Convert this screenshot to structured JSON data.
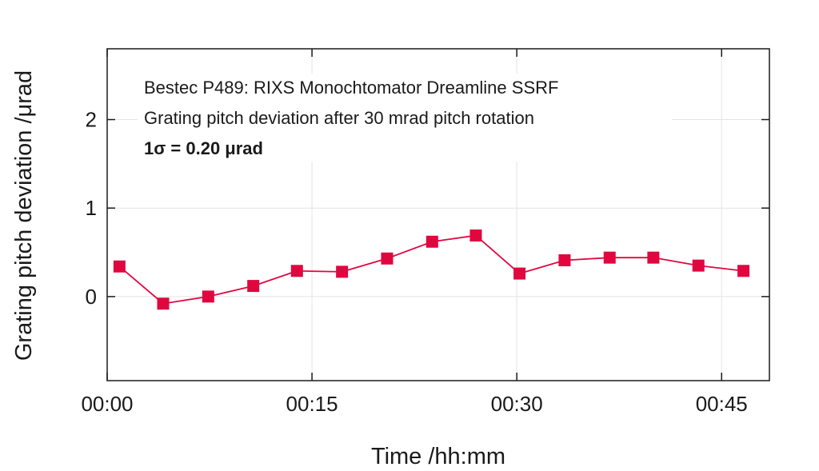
{
  "chart_data": {
    "type": "line",
    "xlabel": "Time /hh:mm",
    "ylabel": "Grating pitch deviation /μrad",
    "xlim": [
      0,
      48.5
    ],
    "ylim": [
      -0.95,
      2.8
    ],
    "x_ticks": [
      {
        "value": 0,
        "label": "00:00"
      },
      {
        "value": 15,
        "label": "00:15"
      },
      {
        "value": 30,
        "label": "00:30"
      },
      {
        "value": 45,
        "label": "00:45"
      }
    ],
    "y_ticks": [
      {
        "value": 0,
        "label": "0"
      },
      {
        "value": 1,
        "label": "1"
      },
      {
        "value": 2,
        "label": "2"
      }
    ],
    "grid": true,
    "annotations": [
      "Bestec P489: RIXS Monochtomator Dreamline SSRF",
      "Grating pitch deviation after 30 mrad pitch rotation",
      "1σ = 0.20 μrad"
    ],
    "series": [
      {
        "color": "#e0073f",
        "marker": "square",
        "x": [
          0.9,
          4.1,
          7.4,
          10.7,
          13.9,
          17.2,
          20.5,
          23.8,
          27.0,
          30.2,
          33.5,
          36.8,
          40.0,
          43.3,
          46.6
        ],
        "y": [
          0.34,
          -0.08,
          0.0,
          0.12,
          0.29,
          0.28,
          0.43,
          0.62,
          0.69,
          0.26,
          0.41,
          0.44,
          0.44,
          0.35,
          0.29
        ]
      }
    ]
  }
}
